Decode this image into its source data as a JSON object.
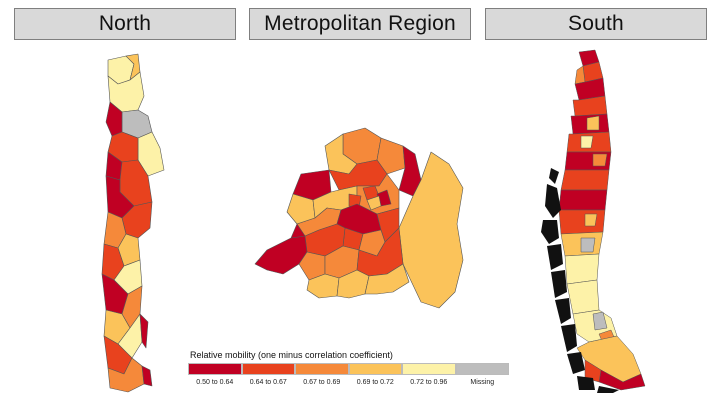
{
  "panels": {
    "north_title": "North",
    "metro_title": "Metropolitan Region",
    "south_title": "South"
  },
  "legend": {
    "title": "Relative mobility (one minus correlation coefficient)",
    "items": [
      {
        "label": "0.50 to 0.64",
        "color": "#c00023"
      },
      {
        "label": "0.64 to 0.67",
        "color": "#e8421e"
      },
      {
        "label": "0.67 to 0.69",
        "color": "#f5893a"
      },
      {
        "label": "0.69 to 0.72",
        "color": "#fbc35a"
      },
      {
        "label": "0.72 to 0.96",
        "color": "#fdf2a8"
      },
      {
        "label": "Missing",
        "color": "#bdbdbd"
      }
    ]
  }
}
